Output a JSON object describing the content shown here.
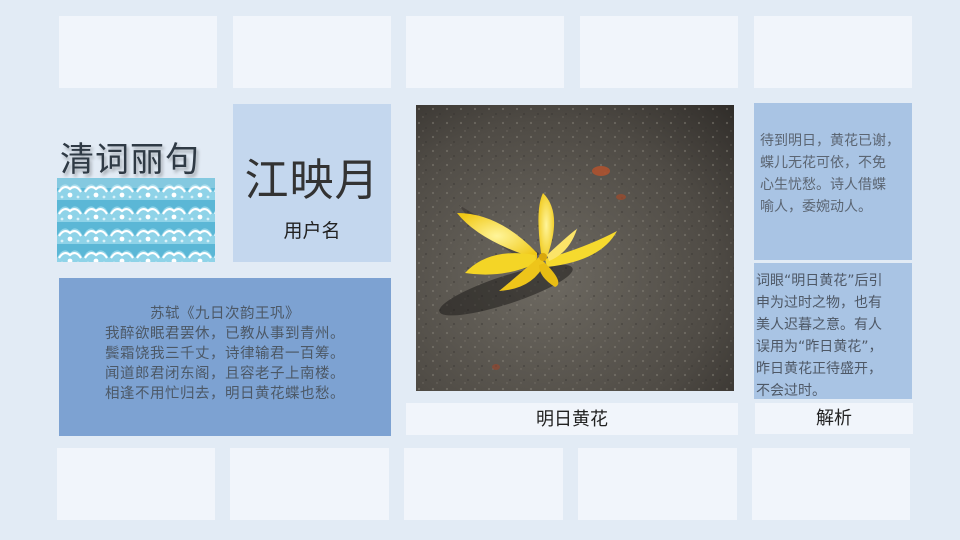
{
  "header": {
    "title": "清词丽句"
  },
  "card": {
    "main": "江映月",
    "sub": "用户名"
  },
  "poem": {
    "lines": [
      "苏轼《九日次韵王巩》",
      "我醉欲眠君罢休，已教从事到青州。",
      "鬓霜饶我三千丈，诗律输君一百筹。",
      "闻道郎君闭东阁，且容老子上南楼。",
      "相逢不用忙归去，明日黄花蝶也愁。"
    ]
  },
  "photo": {
    "caption": "明日黄花"
  },
  "analysis": {
    "label": "解析",
    "note1": [
      "待到明日，黄花已谢，",
      "蝶儿无花可依，不免",
      "心生忧愁。诗人借蝶",
      "喻人，委婉动人。"
    ],
    "note2": [
      "词眼“明日黄花”后引",
      "申为过时之物，也有",
      "美人迟暮之意。有人",
      "误用为“昨日黄花”，",
      "昨日黄花正待盛开，",
      "不会过时。"
    ]
  },
  "colors": {
    "background": "#e2ebf5",
    "tile": "#f1f5fb",
    "name_card": "#c4d7ee",
    "poem_panel": "#7da2d2",
    "note_panel": "#a9c4e4",
    "flower": "#f3d21e"
  }
}
